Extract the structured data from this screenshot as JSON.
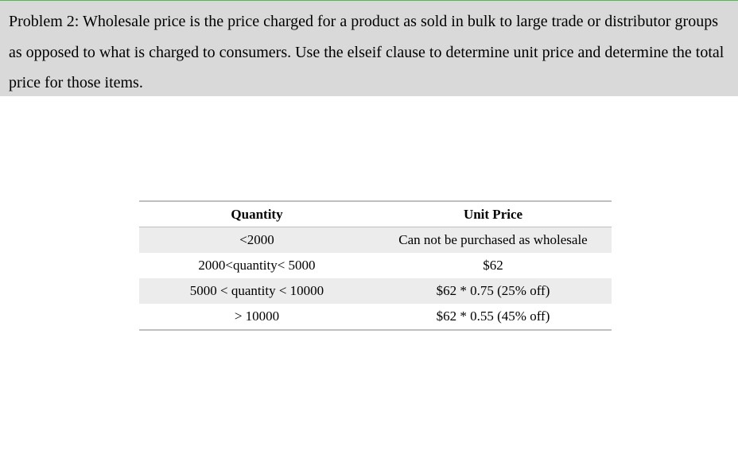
{
  "problem": {
    "text": "Problem 2: Wholesale price is the price charged for a product as sold in bulk to large trade or distributor groups as opposed to what is charged to consumers. Use the elseif clause to determine unit price and determine the total price for those items."
  },
  "table": {
    "headers": {
      "quantity": "Quantity",
      "unit_price": "Unit Price"
    },
    "rows": [
      {
        "quantity": "<2000",
        "unit_price": "Can not be purchased as wholesale"
      },
      {
        "quantity": "2000<quantity< 5000",
        "unit_price": "$62"
      },
      {
        "quantity": "5000 < quantity < 10000",
        "unit_price": "$62 * 0.75 (25% off)"
      },
      {
        "quantity": "> 10000",
        "unit_price": "$62 * 0.55 (45% off)"
      }
    ]
  },
  "colors": {
    "problem_background": "#d9d9d9",
    "row_shade": "#ececec",
    "rule": "#bfbfbf"
  }
}
